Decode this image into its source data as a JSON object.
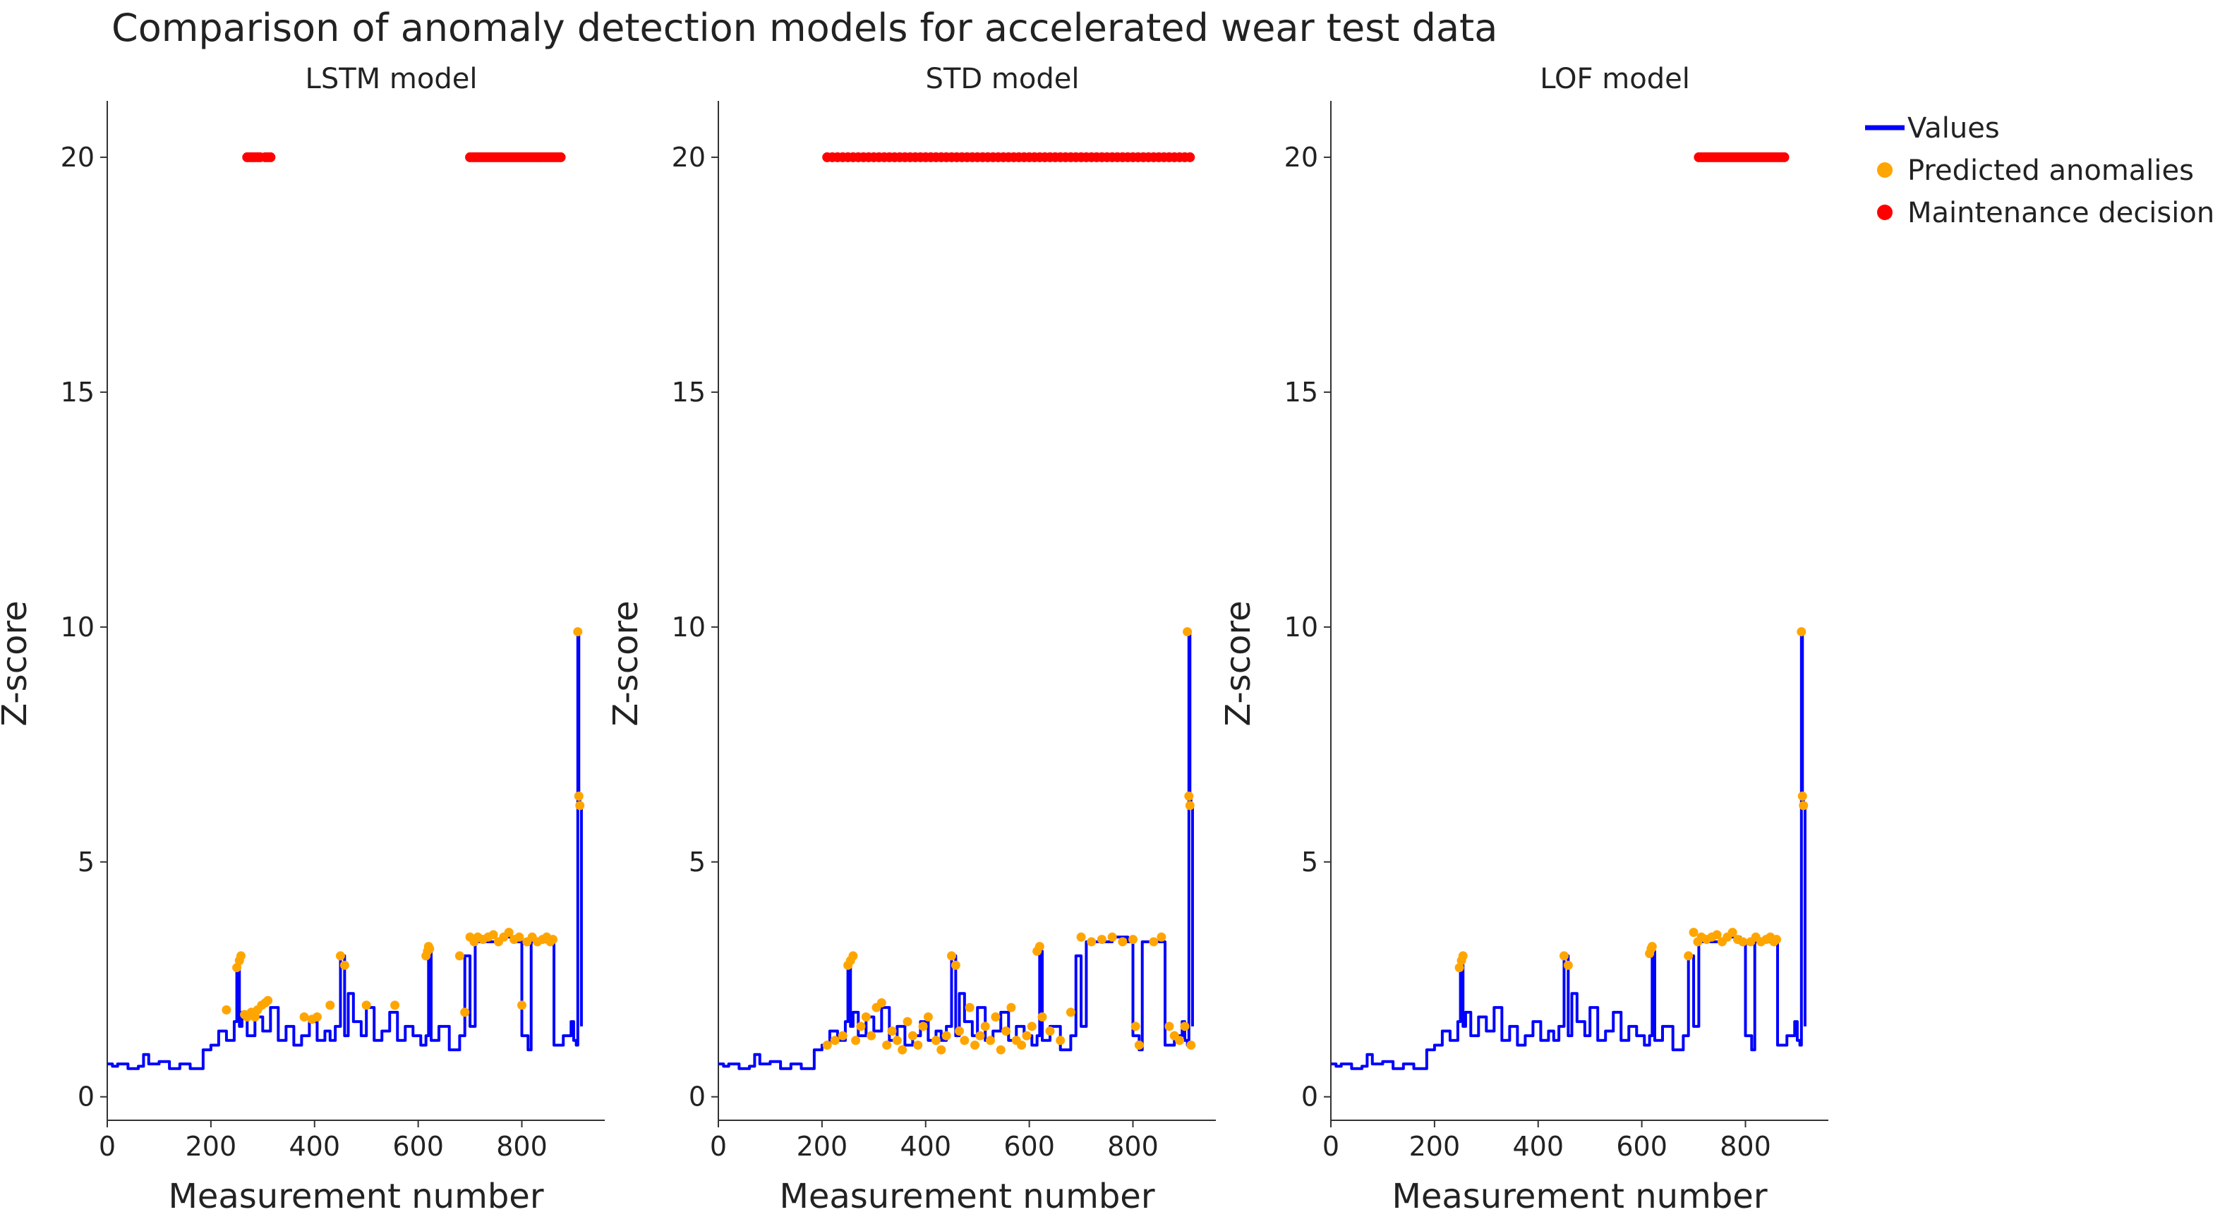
{
  "title": "Comparison of anomaly detection models for accelerated wear test data",
  "colors": {
    "values": "#0000ff",
    "anomalies": "#ffa500",
    "maintenance": "#ff0000",
    "axis": "#333333",
    "text": "#222222"
  },
  "legend": {
    "position": "top-right",
    "items": [
      {
        "label": "Values",
        "marker": "line",
        "color": "#0000ff"
      },
      {
        "label": "Predicted anomalies",
        "marker": "dot",
        "color": "#ffa500"
      },
      {
        "label": "Maintenance decision",
        "marker": "dot",
        "color": "#ff0000"
      }
    ]
  },
  "chart_data": [
    {
      "type": "line",
      "title": "LSTM model",
      "xlabel": "Measurement number",
      "ylabel": "Z-score",
      "xlim": [
        0,
        960
      ],
      "ylim": [
        -0.5,
        21.2
      ],
      "xticks": [
        0,
        200,
        400,
        600,
        800
      ],
      "yticks": [
        0,
        5,
        10,
        15,
        20
      ],
      "series": [
        {
          "name": "Values",
          "kind": "line",
          "style": "step",
          "x": [
            0,
            10,
            20,
            40,
            60,
            70,
            80,
            100,
            120,
            140,
            160,
            180,
            185,
            200,
            215,
            230,
            245,
            250,
            255,
            260,
            270,
            285,
            300,
            315,
            330,
            345,
            360,
            375,
            390,
            405,
            420,
            430,
            440,
            450,
            458,
            465,
            475,
            490,
            500,
            515,
            530,
            545,
            560,
            575,
            590,
            605,
            615,
            620,
            625,
            640,
            660,
            680,
            690,
            700,
            710,
            730,
            760,
            790,
            800,
            812,
            818,
            840,
            855,
            862,
            880,
            895,
            900,
            905,
            908,
            910,
            912,
            915
          ],
          "y": [
            0.7,
            0.65,
            0.7,
            0.6,
            0.65,
            0.9,
            0.7,
            0.75,
            0.6,
            0.7,
            0.6,
            0.6,
            1.0,
            1.1,
            1.4,
            1.2,
            1.6,
            2.8,
            1.5,
            1.8,
            1.3,
            1.7,
            1.4,
            1.9,
            1.2,
            1.5,
            1.1,
            1.3,
            1.6,
            1.2,
            1.4,
            1.2,
            1.5,
            3.0,
            1.3,
            2.2,
            1.6,
            1.3,
            1.9,
            1.2,
            1.4,
            1.8,
            1.2,
            1.5,
            1.3,
            1.1,
            1.3,
            3.1,
            1.2,
            1.5,
            1.0,
            1.3,
            3.0,
            1.5,
            3.3,
            3.3,
            3.4,
            3.3,
            1.3,
            1.0,
            3.3,
            3.3,
            3.3,
            1.1,
            1.3,
            1.6,
            1.2,
            1.1,
            9.9,
            6.4,
            6.2,
            1.5
          ]
        },
        {
          "name": "Predicted anomalies",
          "kind": "points",
          "x": [
            230,
            250,
            255,
            258,
            265,
            270,
            278,
            285,
            290,
            298,
            305,
            310,
            380,
            395,
            405,
            430,
            450,
            458,
            500,
            555,
            615,
            618,
            620,
            622,
            680,
            690,
            700,
            708,
            715,
            725,
            735,
            745,
            755,
            765,
            775,
            785,
            795,
            800,
            810,
            820,
            830,
            840,
            848,
            855,
            860,
            908,
            910,
            912
          ],
          "y": [
            1.85,
            2.75,
            2.9,
            3.0,
            1.75,
            1.7,
            1.8,
            1.7,
            1.85,
            1.95,
            2.0,
            2.05,
            1.7,
            1.65,
            1.7,
            1.95,
            3.0,
            2.8,
            1.95,
            1.95,
            3.0,
            3.1,
            3.2,
            3.15,
            3.0,
            1.8,
            3.4,
            3.3,
            3.4,
            3.35,
            3.4,
            3.45,
            3.3,
            3.4,
            3.5,
            3.35,
            3.4,
            1.95,
            3.3,
            3.4,
            3.3,
            3.35,
            3.4,
            3.3,
            3.35,
            9.9,
            6.4,
            6.2
          ]
        },
        {
          "name": "Maintenance decision",
          "kind": "points",
          "y_value": 20,
          "x": [
            270,
            275,
            280,
            285,
            290,
            295,
            305,
            310,
            315,
            700,
            705,
            710,
            715,
            720,
            725,
            730,
            735,
            740,
            745,
            750,
            755,
            760,
            765,
            770,
            775,
            780,
            785,
            790,
            795,
            800,
            805,
            810,
            815,
            820,
            825,
            830,
            835,
            840,
            845,
            850,
            855,
            860,
            865,
            870,
            875
          ]
        }
      ]
    },
    {
      "type": "line",
      "title": "STD model",
      "xlabel": "Measurement number",
      "ylabel": "Z-score",
      "xlim": [
        0,
        960
      ],
      "ylim": [
        -0.5,
        21.2
      ],
      "xticks": [
        0,
        200,
        400,
        600,
        800
      ],
      "yticks": [
        0,
        5,
        10,
        15,
        20
      ],
      "series": [
        {
          "name": "Values",
          "kind": "line",
          "style": "step",
          "x": [
            0,
            10,
            20,
            40,
            60,
            70,
            80,
            100,
            120,
            140,
            160,
            180,
            185,
            200,
            215,
            230,
            245,
            250,
            255,
            260,
            270,
            285,
            300,
            315,
            330,
            345,
            360,
            375,
            390,
            405,
            420,
            430,
            440,
            450,
            458,
            465,
            475,
            490,
            500,
            515,
            530,
            545,
            560,
            575,
            590,
            605,
            615,
            620,
            625,
            640,
            660,
            680,
            690,
            700,
            710,
            730,
            760,
            790,
            800,
            812,
            818,
            840,
            855,
            862,
            880,
            895,
            900,
            905,
            908,
            910,
            912,
            915
          ],
          "y": [
            0.7,
            0.65,
            0.7,
            0.6,
            0.65,
            0.9,
            0.7,
            0.75,
            0.6,
            0.7,
            0.6,
            0.6,
            1.0,
            1.1,
            1.4,
            1.2,
            1.6,
            2.8,
            1.5,
            1.8,
            1.3,
            1.7,
            1.4,
            1.9,
            1.2,
            1.5,
            1.1,
            1.3,
            1.6,
            1.2,
            1.4,
            1.2,
            1.5,
            3.0,
            1.3,
            2.2,
            1.6,
            1.3,
            1.9,
            1.2,
            1.4,
            1.8,
            1.2,
            1.5,
            1.3,
            1.1,
            1.3,
            3.1,
            1.2,
            1.5,
            1.0,
            1.3,
            3.0,
            1.5,
            3.3,
            3.3,
            3.4,
            3.3,
            1.3,
            1.0,
            3.3,
            3.3,
            3.3,
            1.1,
            1.3,
            1.6,
            1.2,
            1.1,
            9.9,
            6.4,
            6.2,
            1.5
          ]
        },
        {
          "name": "Predicted anomalies",
          "kind": "points",
          "x": [
            210,
            225,
            240,
            250,
            255,
            260,
            265,
            275,
            285,
            295,
            305,
            315,
            325,
            335,
            345,
            355,
            365,
            375,
            385,
            395,
            405,
            420,
            430,
            440,
            450,
            458,
            465,
            475,
            485,
            495,
            505,
            515,
            525,
            535,
            545,
            555,
            565,
            575,
            585,
            595,
            605,
            615,
            620,
            625,
            640,
            660,
            680,
            700,
            720,
            740,
            760,
            780,
            800,
            805,
            812,
            840,
            855,
            870,
            880,
            890,
            900,
            905,
            908,
            910,
            912
          ],
          "y": [
            1.1,
            1.2,
            1.3,
            2.8,
            2.9,
            3.0,
            1.2,
            1.5,
            1.7,
            1.3,
            1.9,
            2.0,
            1.1,
            1.4,
            1.2,
            1.0,
            1.6,
            1.3,
            1.1,
            1.5,
            1.7,
            1.2,
            1.0,
            1.3,
            3.0,
            2.8,
            1.4,
            1.2,
            1.9,
            1.1,
            1.3,
            1.5,
            1.2,
            1.7,
            1.0,
            1.4,
            1.9,
            1.2,
            1.1,
            1.3,
            1.5,
            3.1,
            3.2,
            1.7,
            1.4,
            1.2,
            1.8,
            3.4,
            3.3,
            3.35,
            3.4,
            3.3,
            3.35,
            1.5,
            1.1,
            3.3,
            3.4,
            1.5,
            1.3,
            1.2,
            1.5,
            9.9,
            6.4,
            6.2,
            1.1
          ]
        },
        {
          "name": "Maintenance decision",
          "kind": "points",
          "y_value": 20,
          "x": [
            210,
            220,
            230,
            240,
            250,
            260,
            270,
            280,
            290,
            300,
            310,
            320,
            330,
            340,
            350,
            360,
            370,
            380,
            390,
            400,
            410,
            420,
            430,
            440,
            450,
            460,
            470,
            480,
            490,
            500,
            510,
            520,
            530,
            540,
            550,
            560,
            570,
            580,
            590,
            600,
            610,
            620,
            630,
            640,
            650,
            660,
            670,
            680,
            690,
            700,
            710,
            720,
            730,
            740,
            750,
            760,
            770,
            780,
            790,
            800,
            810,
            820,
            830,
            840,
            850,
            860,
            870,
            880,
            890,
            900,
            910
          ]
        }
      ]
    },
    {
      "type": "line",
      "title": "LOF model",
      "xlabel": "Measurement number",
      "ylabel": "Z-score",
      "xlim": [
        0,
        960
      ],
      "ylim": [
        -0.5,
        21.2
      ],
      "xticks": [
        0,
        200,
        400,
        600,
        800
      ],
      "yticks": [
        0,
        5,
        10,
        15,
        20
      ],
      "series": [
        {
          "name": "Values",
          "kind": "line",
          "style": "step",
          "x": [
            0,
            10,
            20,
            40,
            60,
            70,
            80,
            100,
            120,
            140,
            160,
            180,
            185,
            200,
            215,
            230,
            245,
            250,
            255,
            260,
            270,
            285,
            300,
            315,
            330,
            345,
            360,
            375,
            390,
            405,
            420,
            430,
            440,
            450,
            458,
            465,
            475,
            490,
            500,
            515,
            530,
            545,
            560,
            575,
            590,
            605,
            615,
            620,
            625,
            640,
            660,
            680,
            690,
            700,
            710,
            730,
            760,
            790,
            800,
            812,
            818,
            840,
            855,
            862,
            880,
            895,
            900,
            905,
            908,
            910,
            912,
            915
          ],
          "y": [
            0.7,
            0.65,
            0.7,
            0.6,
            0.65,
            0.9,
            0.7,
            0.75,
            0.6,
            0.7,
            0.6,
            0.6,
            1.0,
            1.1,
            1.4,
            1.2,
            1.6,
            2.8,
            1.5,
            1.8,
            1.3,
            1.7,
            1.4,
            1.9,
            1.2,
            1.5,
            1.1,
            1.3,
            1.6,
            1.2,
            1.4,
            1.2,
            1.5,
            3.0,
            1.3,
            2.2,
            1.6,
            1.3,
            1.9,
            1.2,
            1.4,
            1.8,
            1.2,
            1.5,
            1.3,
            1.1,
            1.3,
            3.1,
            1.2,
            1.5,
            1.0,
            1.3,
            3.0,
            1.5,
            3.3,
            3.3,
            3.4,
            3.3,
            1.3,
            1.0,
            3.3,
            3.3,
            3.3,
            1.1,
            1.3,
            1.6,
            1.2,
            1.1,
            9.9,
            6.4,
            6.2,
            1.5
          ]
        },
        {
          "name": "Predicted anomalies",
          "kind": "points",
          "x": [
            248,
            252,
            255,
            450,
            458,
            615,
            618,
            620,
            690,
            700,
            708,
            715,
            725,
            735,
            745,
            755,
            765,
            775,
            785,
            795,
            810,
            820,
            830,
            840,
            848,
            855,
            860,
            908,
            910,
            912
          ],
          "y": [
            2.75,
            2.9,
            3.0,
            3.0,
            2.8,
            3.05,
            3.15,
            3.2,
            3.0,
            3.5,
            3.3,
            3.4,
            3.35,
            3.4,
            3.45,
            3.3,
            3.4,
            3.5,
            3.35,
            3.3,
            3.3,
            3.4,
            3.3,
            3.35,
            3.4,
            3.3,
            3.35,
            9.9,
            6.4,
            6.2
          ]
        },
        {
          "name": "Maintenance decision",
          "kind": "points",
          "y_value": 20,
          "x": [
            710,
            715,
            720,
            725,
            730,
            735,
            740,
            745,
            750,
            755,
            760,
            765,
            770,
            775,
            780,
            785,
            790,
            795,
            800,
            805,
            810,
            815,
            820,
            825,
            830,
            835,
            840,
            845,
            850,
            855,
            860,
            865,
            870,
            875
          ]
        }
      ]
    }
  ]
}
